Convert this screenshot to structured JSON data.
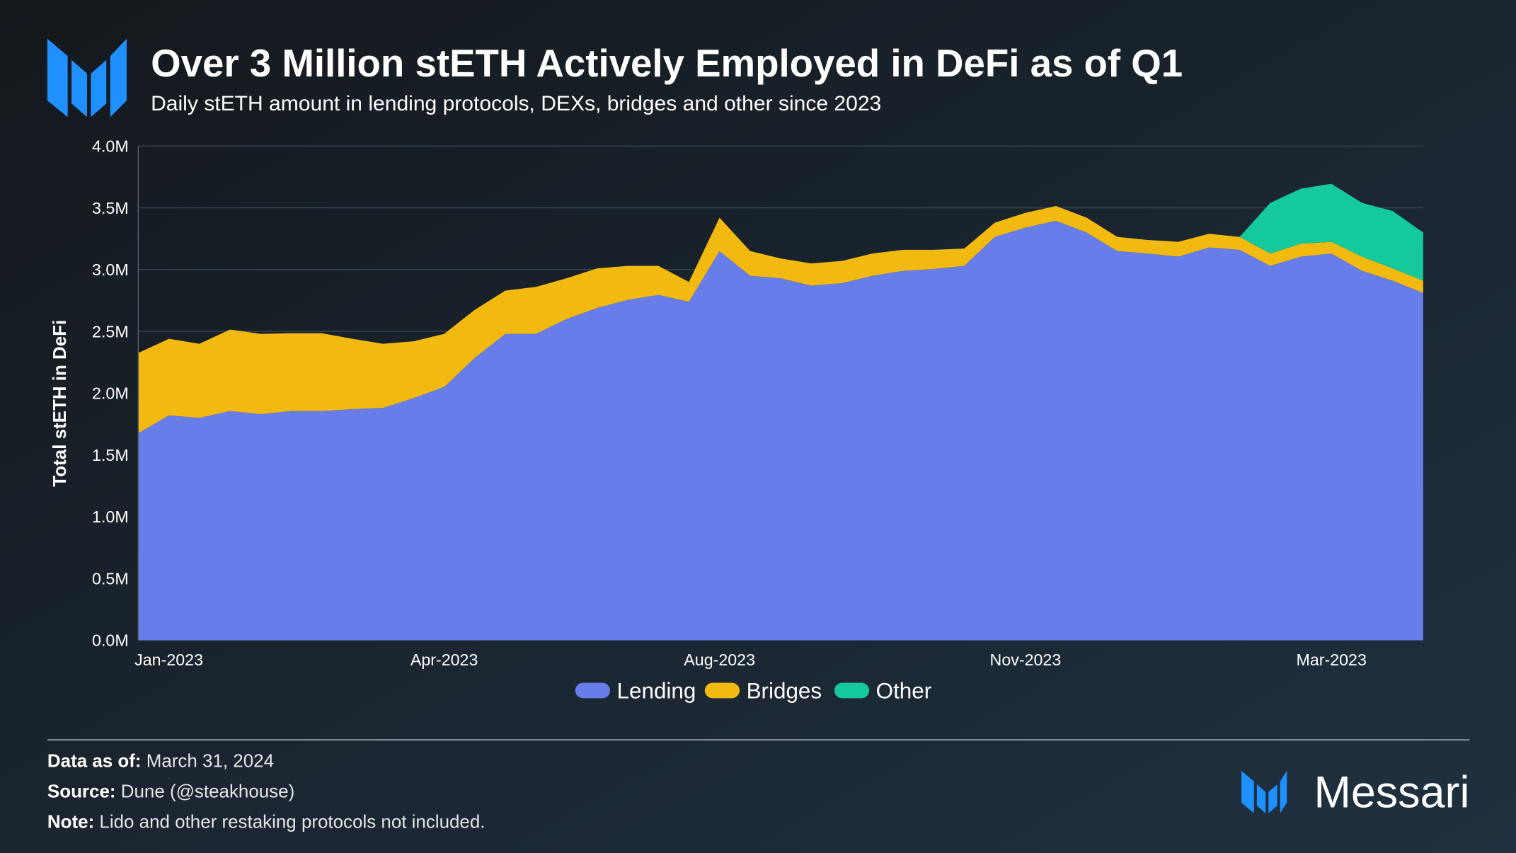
{
  "header": {
    "title": "Over 3 Million stETH Actively Employed in DeFi as of Q1",
    "subtitle": "Daily stETH amount in lending protocols, DEXs, bridges and other since 2023"
  },
  "chart_data": {
    "type": "stacked_area",
    "y_label": "Total stETH in DeFi",
    "categories": [
      null,
      "Jan-2023",
      null,
      null,
      null,
      null,
      null,
      null,
      null,
      null,
      "Apr-2023",
      null,
      null,
      null,
      null,
      null,
      null,
      null,
      null,
      "Aug-2023",
      null,
      null,
      null,
      null,
      null,
      null,
      null,
      null,
      null,
      "Nov-2023",
      null,
      null,
      null,
      null,
      null,
      null,
      null,
      null,
      null,
      "Mar-2023",
      null,
      null,
      null
    ],
    "series": [
      {
        "name": "Lending",
        "color": "#677eea",
        "values": [
          1675000,
          1820000,
          1800000,
          1855000,
          1830000,
          1855000,
          1855000,
          1870000,
          1880000,
          1960000,
          2050000,
          2285000,
          2480000,
          2480000,
          2600000,
          2690000,
          2755000,
          2795000,
          2740000,
          3150000,
          2950000,
          2930000,
          2870000,
          2890000,
          2950000,
          2990000,
          3005000,
          3030000,
          3265000,
          3340000,
          3395000,
          3300000,
          3150000,
          3130000,
          3105000,
          3180000,
          3160000,
          3030000,
          3105000,
          3130000,
          2990000,
          2910000,
          2810000
        ]
      },
      {
        "name": "Bridges",
        "color": "#f2b90f",
        "values": [
          650000,
          620000,
          600000,
          660000,
          650000,
          630000,
          630000,
          570000,
          520000,
          460000,
          430000,
          390000,
          350000,
          380000,
          330000,
          320000,
          275000,
          235000,
          160000,
          270000,
          200000,
          160000,
          180000,
          180000,
          180000,
          170000,
          155000,
          140000,
          115000,
          120000,
          120000,
          120000,
          115000,
          110000,
          120000,
          110000,
          105000,
          100000,
          105000,
          95000,
          115000,
          100000,
          100000
        ]
      },
      {
        "name": "Other",
        "color": "#14c99b",
        "values": [
          0,
          0,
          0,
          0,
          0,
          0,
          0,
          0,
          0,
          0,
          0,
          0,
          0,
          0,
          0,
          0,
          0,
          0,
          0,
          0,
          0,
          0,
          0,
          0,
          0,
          0,
          0,
          0,
          0,
          0,
          0,
          0,
          0,
          0,
          0,
          0,
          0,
          410000,
          445000,
          470000,
          435000,
          465000,
          390000
        ]
      }
    ],
    "ylim": [
      0,
      4000000
    ],
    "yticks": [
      {
        "value": 0,
        "label": "0.0M"
      },
      {
        "value": 500000,
        "label": "0.5M"
      },
      {
        "value": 1000000,
        "label": "1.0M"
      },
      {
        "value": 1500000,
        "label": "1.5M"
      },
      {
        "value": 2000000,
        "label": "2.0M"
      },
      {
        "value": 2500000,
        "label": "2.5M"
      },
      {
        "value": 3000000,
        "label": "3.0M"
      },
      {
        "value": 3500000,
        "label": "3.5M"
      },
      {
        "value": 4000000,
        "label": "4.0M"
      }
    ],
    "grid": true
  },
  "footer": {
    "notes": [
      {
        "label": "Data as of:",
        "text": "March 31, 2024"
      },
      {
        "label": "Source:",
        "text": "Dune (@steakhouse)"
      },
      {
        "label": "Note:",
        "text": "Lido and other restaking protocols not included."
      }
    ],
    "brand": "Messari"
  }
}
